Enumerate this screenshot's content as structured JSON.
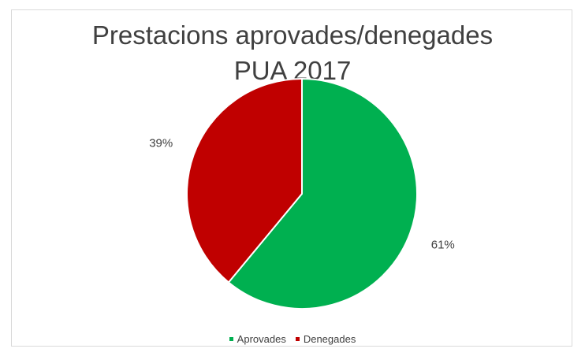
{
  "chart_data": {
    "type": "pie",
    "title_lines": [
      "Prestacions aprovades/denegades",
      "PUA 2017"
    ],
    "slices": [
      {
        "label": "Aprovades",
        "value": 61,
        "display": "61%",
        "color": "#00b050"
      },
      {
        "label": "Denegades",
        "value": 39,
        "display": "39%",
        "color": "#c00000"
      }
    ],
    "legend_placement": "bottom"
  }
}
